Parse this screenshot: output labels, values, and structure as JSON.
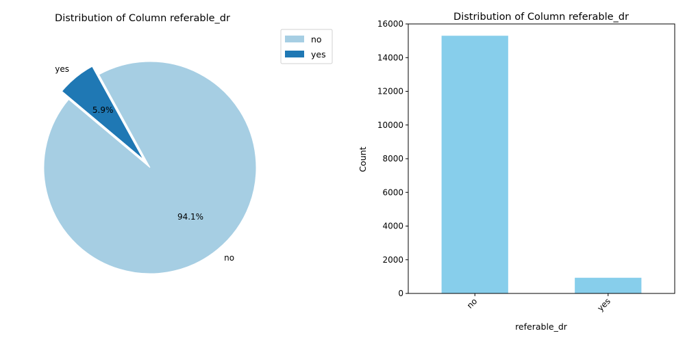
{
  "chart_data": [
    {
      "type": "pie",
      "title": "Distribution of Column referable_dr",
      "categories": [
        "no",
        "yes"
      ],
      "percentages": [
        "94.1%",
        "5.9%"
      ],
      "values": [
        94.1,
        5.9
      ],
      "colors": [
        "#a6cee3",
        "#1f78b4"
      ],
      "explode": [
        0,
        0.1
      ],
      "legend": {
        "placement": "top-right outside",
        "entries": [
          "no",
          "yes"
        ]
      }
    },
    {
      "type": "bar",
      "title": "Distribution of Column referable_dr",
      "categories": [
        "no",
        "yes"
      ],
      "values": [
        15300,
        930
      ],
      "color": "#87ceeb",
      "xlabel": "referable_dr",
      "ylabel": "Count",
      "ylim": [
        0,
        16000
      ],
      "yticks": [
        "0",
        "2000",
        "4000",
        "6000",
        "8000",
        "10000",
        "12000",
        "14000",
        "16000"
      ],
      "grid": false
    }
  ]
}
